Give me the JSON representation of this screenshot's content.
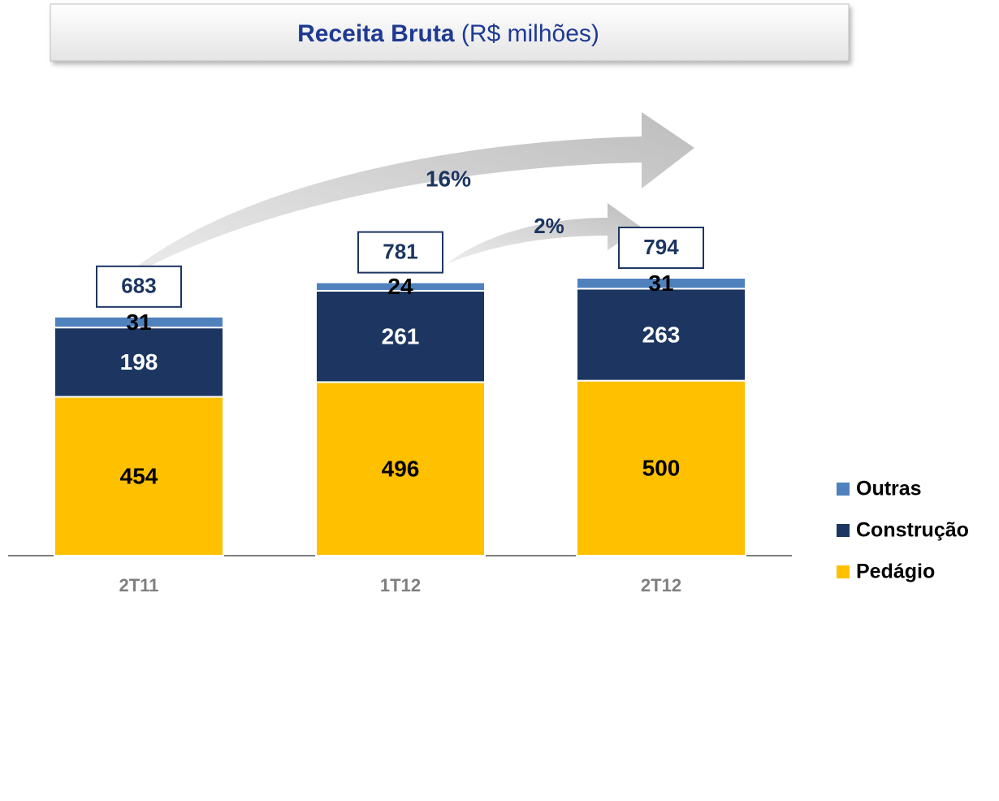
{
  "chart_data": {
    "type": "stacked-bar",
    "title": "Receita Bruta",
    "subtitle": "(R$ milhões)",
    "categories": [
      "2T11",
      "1T12",
      "2T12"
    ],
    "series": [
      {
        "name": "Pedágio",
        "color": "#ffc000",
        "values": [
          454,
          496,
          500
        ]
      },
      {
        "name": "Construção",
        "color": "#1c3661",
        "values": [
          198,
          261,
          263
        ]
      },
      {
        "name": "Outras",
        "color": "#4f81bd",
        "values": [
          31,
          24,
          31
        ]
      }
    ],
    "totals": [
      683,
      781,
      794
    ],
    "annotations": [
      "16%",
      "2%"
    ]
  }
}
